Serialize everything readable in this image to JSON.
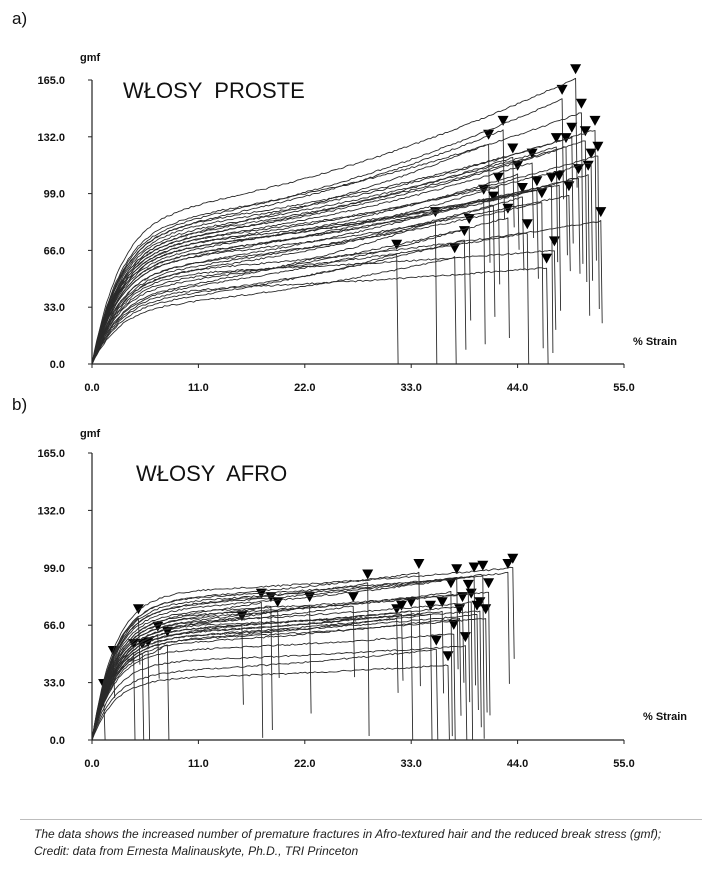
{
  "figure_caption": "The data shows the increased number of premature fractures in Afro-textured hair and the reduced break stress (gmf); Credit: data from Ernesta Malinauskyte, Ph.D., TRI Princeton",
  "chart_data": [
    {
      "type": "line",
      "panel_label": "a)",
      "title": "WŁOSY  PROSTE",
      "ylabel": "gmf",
      "xlabel": "% Strain",
      "xlim": [
        0,
        55
      ],
      "ylim": [
        0,
        165
      ],
      "xticks": [
        "0.0",
        "11.0",
        "22.0",
        "33.0",
        "44.0",
        "55.0"
      ],
      "yticks": [
        "0.0",
        "33.0",
        "66.0",
        "99.0",
        "132.0",
        "165.0"
      ],
      "grid": false,
      "break_markers": "filled triangles at the fracture point of each curve",
      "series": [
        {
          "name": "s1",
          "break_strain": 31.5,
          "plateau_stress": 40,
          "break_stress": 64
        },
        {
          "name": "s2",
          "break_strain": 35.5,
          "plateau_stress": 47,
          "break_stress": 83
        },
        {
          "name": "s3",
          "break_strain": 37.5,
          "plateau_stress": 37,
          "break_stress": 62
        },
        {
          "name": "s4",
          "break_strain": 38.5,
          "plateau_stress": 42,
          "break_stress": 72
        },
        {
          "name": "s5",
          "break_strain": 39,
          "plateau_stress": 46,
          "break_stress": 79
        },
        {
          "name": "s6",
          "break_strain": 40.5,
          "plateau_stress": 60,
          "break_stress": 96
        },
        {
          "name": "s7",
          "break_strain": 41,
          "plateau_stress": 78,
          "break_stress": 128
        },
        {
          "name": "s8",
          "break_strain": 41.5,
          "plateau_stress": 56,
          "break_stress": 92
        },
        {
          "name": "s9",
          "break_strain": 42,
          "plateau_stress": 64,
          "break_stress": 103
        },
        {
          "name": "s10",
          "break_strain": 42.5,
          "plateau_stress": 84,
          "break_stress": 136
        },
        {
          "name": "s11",
          "break_strain": 43,
          "plateau_stress": 50,
          "break_stress": 85
        },
        {
          "name": "s12",
          "break_strain": 43.5,
          "plateau_stress": 76,
          "break_stress": 120
        },
        {
          "name": "s13",
          "break_strain": 44,
          "plateau_stress": 68,
          "break_stress": 110
        },
        {
          "name": "s14",
          "break_strain": 44.5,
          "plateau_stress": 58,
          "break_stress": 97
        },
        {
          "name": "s15",
          "break_strain": 45,
          "plateau_stress": 52,
          "break_stress": 76
        },
        {
          "name": "s16",
          "break_strain": 45.5,
          "plateau_stress": 74,
          "break_stress": 117
        },
        {
          "name": "s17",
          "break_strain": 46,
          "plateau_stress": 66,
          "break_stress": 101
        },
        {
          "name": "s18",
          "break_strain": 46.5,
          "plateau_stress": 60,
          "break_stress": 94
        },
        {
          "name": "s19",
          "break_strain": 47,
          "plateau_stress": 44,
          "break_stress": 56
        },
        {
          "name": "s20",
          "break_strain": 47.5,
          "plateau_stress": 70,
          "break_stress": 103
        },
        {
          "name": "s21",
          "break_strain": 47.8,
          "plateau_stress": 54,
          "break_stress": 66
        },
        {
          "name": "s22",
          "break_strain": 48,
          "plateau_stress": 80,
          "break_stress": 126
        },
        {
          "name": "s23",
          "break_strain": 48.3,
          "plateau_stress": 72,
          "break_stress": 104
        },
        {
          "name": "s24",
          "break_strain": 48.6,
          "plateau_stress": 86,
          "break_stress": 154
        },
        {
          "name": "s25",
          "break_strain": 49,
          "plateau_stress": 76,
          "break_stress": 126
        },
        {
          "name": "s26",
          "break_strain": 49.3,
          "plateau_stress": 64,
          "break_stress": 98
        },
        {
          "name": "s27",
          "break_strain": 49.6,
          "plateau_stress": 82,
          "break_stress": 132
        },
        {
          "name": "s28",
          "break_strain": 50,
          "plateau_stress": 94,
          "break_stress": 166
        },
        {
          "name": "s29",
          "break_strain": 50.3,
          "plateau_stress": 70,
          "break_stress": 108
        },
        {
          "name": "s30",
          "break_strain": 50.6,
          "plateau_stress": 88,
          "break_stress": 146
        },
        {
          "name": "s31",
          "break_strain": 51,
          "plateau_stress": 78,
          "break_stress": 130
        },
        {
          "name": "s32",
          "break_strain": 51.3,
          "plateau_stress": 66,
          "break_stress": 110
        },
        {
          "name": "s33",
          "break_strain": 51.6,
          "plateau_stress": 74,
          "break_stress": 117
        },
        {
          "name": "s34",
          "break_strain": 52,
          "plateau_stress": 84,
          "break_stress": 136
        },
        {
          "name": "s35",
          "break_strain": 52.3,
          "plateau_stress": 72,
          "break_stress": 121
        },
        {
          "name": "s36",
          "break_strain": 52.6,
          "plateau_stress": 56,
          "break_stress": 83
        }
      ]
    },
    {
      "type": "line",
      "panel_label": "b)",
      "title": "WŁOSY  AFRO",
      "ylabel": "gmf",
      "xlabel": "% Strain",
      "xlim": [
        0,
        55
      ],
      "ylim": [
        0,
        165
      ],
      "xticks": [
        "0.0",
        "11.0",
        "22.0",
        "33.0",
        "44.0",
        "55.0"
      ],
      "yticks": [
        "0.0",
        "33.0",
        "66.0",
        "99.0",
        "132.0",
        "165.0"
      ],
      "grid": false,
      "break_markers": "filled triangles at the fracture point of each curve",
      "series": [
        {
          "name": "s1",
          "break_strain": 1.2,
          "plateau_stress": 26,
          "break_stress": 27
        },
        {
          "name": "s2",
          "break_strain": 2.2,
          "plateau_stress": 45,
          "break_stress": 46
        },
        {
          "name": "s3",
          "break_strain": 4.3,
          "plateau_stress": 48,
          "break_stress": 50
        },
        {
          "name": "s4",
          "break_strain": 4.8,
          "plateau_stress": 66,
          "break_stress": 70
        },
        {
          "name": "s5",
          "break_strain": 5.2,
          "plateau_stress": 48,
          "break_stress": 50
        },
        {
          "name": "s6",
          "break_strain": 5.8,
          "plateau_stress": 50,
          "break_stress": 51
        },
        {
          "name": "s7",
          "break_strain": 6.8,
          "plateau_stress": 58,
          "break_stress": 60
        },
        {
          "name": "s8",
          "break_strain": 7.8,
          "plateau_stress": 54,
          "break_stress": 57
        },
        {
          "name": "s9",
          "break_strain": 15.5,
          "plateau_stress": 62,
          "break_stress": 66
        },
        {
          "name": "s10",
          "break_strain": 17.5,
          "plateau_stress": 72,
          "break_stress": 79
        },
        {
          "name": "s11",
          "break_strain": 18.5,
          "plateau_stress": 70,
          "break_stress": 77
        },
        {
          "name": "s12",
          "break_strain": 19.2,
          "plateau_stress": 66,
          "break_stress": 74
        },
        {
          "name": "s13",
          "break_strain": 22.5,
          "plateau_stress": 68,
          "break_stress": 77
        },
        {
          "name": "s14",
          "break_strain": 27,
          "plateau_stress": 66,
          "break_stress": 77
        },
        {
          "name": "s15",
          "break_strain": 28.5,
          "plateau_stress": 78,
          "break_stress": 90
        },
        {
          "name": "s16",
          "break_strain": 31.5,
          "plateau_stress": 58,
          "break_stress": 70
        },
        {
          "name": "s17",
          "break_strain": 32,
          "plateau_stress": 62,
          "break_stress": 72
        },
        {
          "name": "s18",
          "break_strain": 33,
          "plateau_stress": 64,
          "break_stress": 74
        },
        {
          "name": "s19",
          "break_strain": 33.8,
          "plateau_stress": 82,
          "break_stress": 96
        },
        {
          "name": "s20",
          "break_strain": 35,
          "plateau_stress": 60,
          "break_stress": 72
        },
        {
          "name": "s21",
          "break_strain": 35.6,
          "plateau_stress": 40,
          "break_stress": 52
        },
        {
          "name": "s22",
          "break_strain": 36.2,
          "plateau_stress": 62,
          "break_stress": 74
        },
        {
          "name": "s23",
          "break_strain": 36.8,
          "plateau_stress": 36,
          "break_stress": 43
        },
        {
          "name": "s24",
          "break_strain": 37.1,
          "plateau_stress": 70,
          "break_stress": 85
        },
        {
          "name": "s25",
          "break_strain": 37.4,
          "plateau_stress": 52,
          "break_stress": 61
        },
        {
          "name": "s26",
          "break_strain": 37.7,
          "plateau_stress": 78,
          "break_stress": 93
        },
        {
          "name": "s27",
          "break_strain": 38,
          "plateau_stress": 56,
          "break_stress": 70
        },
        {
          "name": "s28",
          "break_strain": 38.3,
          "plateau_stress": 64,
          "break_stress": 77
        },
        {
          "name": "s29",
          "break_strain": 38.6,
          "plateau_stress": 46,
          "break_stress": 54
        },
        {
          "name": "s30",
          "break_strain": 38.9,
          "plateau_stress": 72,
          "break_stress": 84
        },
        {
          "name": "s31",
          "break_strain": 39.2,
          "plateau_stress": 68,
          "break_stress": 79
        },
        {
          "name": "s32",
          "break_strain": 39.5,
          "plateau_stress": 76,
          "break_stress": 94
        },
        {
          "name": "s33",
          "break_strain": 39.8,
          "plateau_stress": 60,
          "break_stress": 72
        },
        {
          "name": "s34",
          "break_strain": 40.1,
          "plateau_stress": 66,
          "break_stress": 74
        },
        {
          "name": "s35",
          "break_strain": 40.4,
          "plateau_stress": 80,
          "break_stress": 95
        },
        {
          "name": "s36",
          "break_strain": 40.7,
          "plateau_stress": 58,
          "break_stress": 70
        },
        {
          "name": "s37",
          "break_strain": 41,
          "plateau_stress": 74,
          "break_stress": 85
        },
        {
          "name": "s38",
          "break_strain": 43,
          "plateau_stress": 82,
          "break_stress": 96
        },
        {
          "name": "s39",
          "break_strain": 43.5,
          "plateau_stress": 86,
          "break_stress": 99
        }
      ]
    }
  ]
}
